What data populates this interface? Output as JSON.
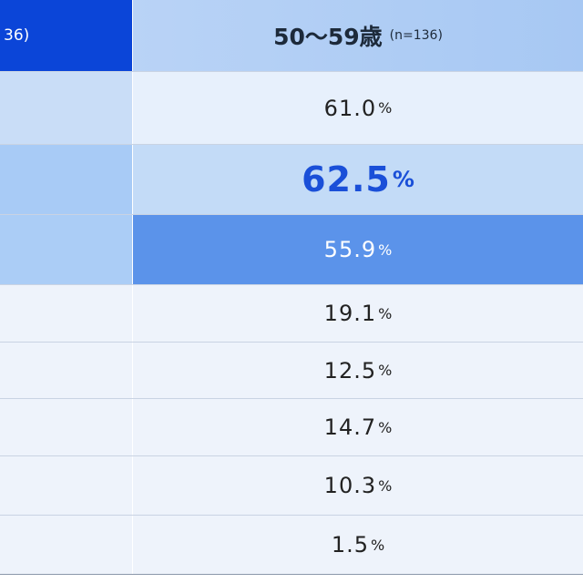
{
  "header": {
    "left": "36)",
    "right_title": "50〜59歳",
    "right_n": "(n=136)"
  },
  "rows": [
    {
      "value": "61.0",
      "unit": "%"
    },
    {
      "value": "62.5",
      "unit": "%"
    },
    {
      "value": "55.9",
      "unit": "%"
    },
    {
      "value": "19.1",
      "unit": "%"
    },
    {
      "value": "12.5",
      "unit": "%"
    },
    {
      "value": "14.7",
      "unit": "%"
    },
    {
      "value": "10.3",
      "unit": "%"
    },
    {
      "value": "1.5",
      "unit": "%"
    }
  ]
}
